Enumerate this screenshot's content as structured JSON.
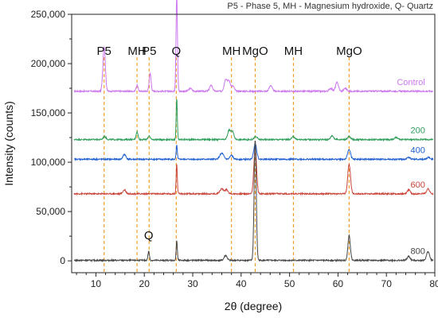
{
  "header_note": "P5 - Phase 5, MH - Magnesium hydroxide, Q- Quartz",
  "chart_data": {
    "type": "line",
    "xlabel": "2θ (degree)",
    "ylabel": "Intensity (counts)",
    "xlim": [
      5,
      80
    ],
    "ylim": [
      -12000,
      250000
    ],
    "x_ticks": [
      10,
      20,
      30,
      40,
      50,
      60,
      70,
      80
    ],
    "x_tick_labels": [
      "10",
      "20",
      "30",
      "40",
      "50",
      "60",
      "70",
      "80"
    ],
    "y_ticks": [
      0,
      50000,
      100000,
      150000,
      200000,
      250000
    ],
    "y_tick_labels": [
      "0",
      "50,000",
      "100,000",
      "150,000",
      "200,000",
      "250,000"
    ],
    "grid": false,
    "reference_lines": [
      {
        "label": "P5",
        "x": 11.7
      },
      {
        "label": "MH",
        "x": 18.5
      },
      {
        "label": "P5",
        "x": 21.0
      },
      {
        "label": "Q",
        "x": 26.6
      },
      {
        "label": "MH",
        "x": 38.0
      },
      {
        "label": "MgO",
        "x": 42.9
      },
      {
        "label": "MH",
        "x": 50.8
      },
      {
        "label": "MgO",
        "x": 62.3
      }
    ],
    "annotations": [
      {
        "text": "Q",
        "x": 20.9,
        "y": 22000
      }
    ],
    "series": [
      {
        "name": "Control",
        "color": "#cc77ee",
        "baseline": 172000,
        "label_x": 78,
        "peaks": [
          [
            11.7,
            45000,
            0.25
          ],
          [
            18.5,
            6000,
            0.2
          ],
          [
            21.2,
            18000,
            0.2
          ],
          [
            26.7,
            97000,
            0.15
          ],
          [
            29.5,
            3000,
            0.3
          ],
          [
            33.8,
            6000,
            0.3
          ],
          [
            36.8,
            12000,
            0.3
          ],
          [
            37.5,
            10000,
            0.3
          ],
          [
            38.3,
            5000,
            0.3
          ],
          [
            46.1,
            6000,
            0.3
          ],
          [
            58.5,
            3000,
            0.3
          ],
          [
            59.8,
            9000,
            0.3
          ],
          [
            61.5,
            3000,
            0.3
          ]
        ]
      },
      {
        "name": "200",
        "color": "#2e9e5b",
        "baseline": 123000,
        "label_x": 78,
        "peaks": [
          [
            11.8,
            3000,
            0.3
          ],
          [
            18.5,
            8000,
            0.2
          ],
          [
            21.0,
            4000,
            0.2
          ],
          [
            26.7,
            42000,
            0.12
          ],
          [
            37.5,
            9000,
            0.3
          ],
          [
            38.2,
            8000,
            0.3
          ],
          [
            43.0,
            3000,
            0.3
          ],
          [
            50.8,
            3000,
            0.3
          ],
          [
            58.8,
            4000,
            0.3
          ],
          [
            62.3,
            3000,
            0.3
          ],
          [
            72.0,
            2000,
            0.3
          ]
        ]
      },
      {
        "name": "400",
        "color": "#1f5fd0",
        "baseline": 103000,
        "label_x": 78,
        "peaks": [
          [
            15.9,
            5000,
            0.3
          ],
          [
            26.7,
            14000,
            0.12
          ],
          [
            36.0,
            6000,
            0.4
          ],
          [
            38.0,
            4000,
            0.3
          ],
          [
            42.9,
            16000,
            0.3
          ],
          [
            62.3,
            10000,
            0.3
          ],
          [
            74.6,
            2000,
            0.3
          ],
          [
            78.7,
            2000,
            0.3
          ]
        ]
      },
      {
        "name": "600",
        "color": "#c9453a",
        "baseline": 68000,
        "label_x": 78,
        "peaks": [
          [
            15.9,
            4000,
            0.3
          ],
          [
            26.7,
            30000,
            0.12
          ],
          [
            36.0,
            5000,
            0.4
          ],
          [
            37.0,
            4000,
            0.3
          ],
          [
            42.9,
            46000,
            0.28
          ],
          [
            62.3,
            30000,
            0.28
          ],
          [
            74.6,
            4000,
            0.3
          ],
          [
            78.6,
            5000,
            0.3
          ]
        ]
      },
      {
        "name": "800",
        "color": "#444444",
        "baseline": 500,
        "label_x": 78,
        "peaks": [
          [
            20.9,
            9000,
            0.15
          ],
          [
            26.7,
            20000,
            0.12
          ],
          [
            36.8,
            5000,
            0.3
          ],
          [
            42.9,
            122000,
            0.22
          ],
          [
            62.3,
            25000,
            0.25
          ],
          [
            74.6,
            4000,
            0.3
          ],
          [
            78.6,
            9000,
            0.3
          ]
        ]
      }
    ]
  }
}
